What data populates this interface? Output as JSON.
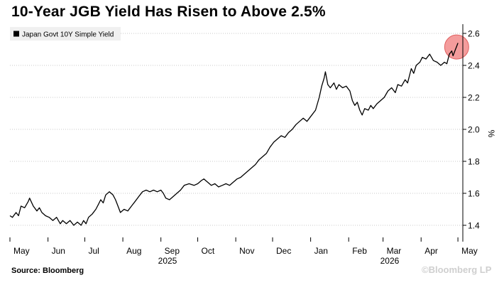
{
  "chart_data": {
    "type": "line",
    "title": "10-Year JGB Yield Has Risen to Above 2.5%",
    "xlabel": "",
    "ylabel": "%",
    "ylim": [
      1.3,
      2.65
    ],
    "yticks": [
      1.4,
      1.6,
      1.8,
      2.0,
      2.2,
      2.4,
      2.6
    ],
    "ytick_labels": [
      "1.4",
      "1.6",
      "1.8",
      "2.0",
      "2.2",
      "2.4",
      "2.6"
    ],
    "x_axis": {
      "start": "2025-05-01",
      "end": "2026-05-05",
      "months": [
        {
          "label": "May",
          "date": "2025-05-01"
        },
        {
          "label": "Jun",
          "date": "2025-06-01"
        },
        {
          "label": "Jul",
          "date": "2025-07-01"
        },
        {
          "label": "Aug",
          "date": "2025-08-01"
        },
        {
          "label": "Sep",
          "date": "2025-09-01"
        },
        {
          "label": "Oct",
          "date": "2025-10-01"
        },
        {
          "label": "Nov",
          "date": "2025-11-01"
        },
        {
          "label": "Dec",
          "date": "2025-12-01"
        },
        {
          "label": "Jan",
          "date": "2026-01-01"
        },
        {
          "label": "Feb",
          "date": "2026-02-01"
        },
        {
          "label": "Mar",
          "date": "2026-03-01"
        },
        {
          "label": "Apr",
          "date": "2026-04-01"
        },
        {
          "label": "May",
          "date": "2026-05-01"
        }
      ],
      "year_labels": [
        {
          "label": "2025",
          "date": "2025-09-01"
        },
        {
          "label": "2026",
          "date": "2026-03-01"
        }
      ]
    },
    "grid": true,
    "legend": {
      "position": "top-left"
    },
    "series": [
      {
        "name": "Japan Govt 10Y Simple Yield",
        "color": "#000000",
        "points": [
          [
            "2025-05-01",
            1.46
          ],
          [
            "2025-05-03",
            1.45
          ],
          [
            "2025-05-06",
            1.48
          ],
          [
            "2025-05-08",
            1.46
          ],
          [
            "2025-05-10",
            1.52
          ],
          [
            "2025-05-13",
            1.51
          ],
          [
            "2025-05-16",
            1.55
          ],
          [
            "2025-05-17",
            1.57
          ],
          [
            "2025-05-20",
            1.52
          ],
          [
            "2025-05-23",
            1.49
          ],
          [
            "2025-05-25",
            1.51
          ],
          [
            "2025-05-27",
            1.48
          ],
          [
            "2025-05-30",
            1.46
          ],
          [
            "2025-06-02",
            1.45
          ],
          [
            "2025-06-05",
            1.43
          ],
          [
            "2025-06-08",
            1.45
          ],
          [
            "2025-06-11",
            1.41
          ],
          [
            "2025-06-13",
            1.43
          ],
          [
            "2025-06-16",
            1.41
          ],
          [
            "2025-06-19",
            1.43
          ],
          [
            "2025-06-22",
            1.4
          ],
          [
            "2025-06-25",
            1.42
          ],
          [
            "2025-06-28",
            1.4
          ],
          [
            "2025-06-30",
            1.43
          ],
          [
            "2025-07-02",
            1.41
          ],
          [
            "2025-07-04",
            1.45
          ],
          [
            "2025-07-07",
            1.47
          ],
          [
            "2025-07-10",
            1.5
          ],
          [
            "2025-07-12",
            1.53
          ],
          [
            "2025-07-14",
            1.56
          ],
          [
            "2025-07-16",
            1.54
          ],
          [
            "2025-07-18",
            1.59
          ],
          [
            "2025-07-21",
            1.61
          ],
          [
            "2025-07-24",
            1.59
          ],
          [
            "2025-07-26",
            1.56
          ],
          [
            "2025-07-28",
            1.52
          ],
          [
            "2025-07-30",
            1.48
          ],
          [
            "2025-08-02",
            1.5
          ],
          [
            "2025-08-05",
            1.49
          ],
          [
            "2025-08-08",
            1.52
          ],
          [
            "2025-08-11",
            1.55
          ],
          [
            "2025-08-14",
            1.58
          ],
          [
            "2025-08-17",
            1.61
          ],
          [
            "2025-08-20",
            1.62
          ],
          [
            "2025-08-23",
            1.61
          ],
          [
            "2025-08-26",
            1.62
          ],
          [
            "2025-08-29",
            1.61
          ],
          [
            "2025-09-01",
            1.62
          ],
          [
            "2025-09-03",
            1.6
          ],
          [
            "2025-09-05",
            1.57
          ],
          [
            "2025-09-08",
            1.56
          ],
          [
            "2025-09-11",
            1.58
          ],
          [
            "2025-09-14",
            1.6
          ],
          [
            "2025-09-17",
            1.62
          ],
          [
            "2025-09-20",
            1.65
          ],
          [
            "2025-09-24",
            1.66
          ],
          [
            "2025-09-28",
            1.65
          ],
          [
            "2025-10-01",
            1.66
          ],
          [
            "2025-10-04",
            1.68
          ],
          [
            "2025-10-06",
            1.69
          ],
          [
            "2025-10-09",
            1.67
          ],
          [
            "2025-10-12",
            1.65
          ],
          [
            "2025-10-15",
            1.66
          ],
          [
            "2025-10-18",
            1.64
          ],
          [
            "2025-10-21",
            1.65
          ],
          [
            "2025-10-24",
            1.66
          ],
          [
            "2025-10-27",
            1.65
          ],
          [
            "2025-10-30",
            1.67
          ],
          [
            "2025-11-02",
            1.69
          ],
          [
            "2025-11-05",
            1.7
          ],
          [
            "2025-11-08",
            1.72
          ],
          [
            "2025-11-11",
            1.74
          ],
          [
            "2025-11-14",
            1.76
          ],
          [
            "2025-11-17",
            1.78
          ],
          [
            "2025-11-20",
            1.81
          ],
          [
            "2025-11-23",
            1.83
          ],
          [
            "2025-11-26",
            1.85
          ],
          [
            "2025-11-29",
            1.89
          ],
          [
            "2025-12-02",
            1.92
          ],
          [
            "2025-12-05",
            1.94
          ],
          [
            "2025-12-08",
            1.96
          ],
          [
            "2025-12-11",
            1.95
          ],
          [
            "2025-12-14",
            1.98
          ],
          [
            "2025-12-17",
            2.0
          ],
          [
            "2025-12-20",
            2.03
          ],
          [
            "2025-12-23",
            2.05
          ],
          [
            "2025-12-26",
            2.07
          ],
          [
            "2025-12-29",
            2.05
          ],
          [
            "2026-01-02",
            2.09
          ],
          [
            "2026-01-05",
            2.12
          ],
          [
            "2026-01-08",
            2.2
          ],
          [
            "2026-01-10",
            2.27
          ],
          [
            "2026-01-12",
            2.32
          ],
          [
            "2026-01-13",
            2.36
          ],
          [
            "2026-01-15",
            2.28
          ],
          [
            "2026-01-17",
            2.26
          ],
          [
            "2026-01-20",
            2.29
          ],
          [
            "2026-01-22",
            2.25
          ],
          [
            "2026-01-24",
            2.28
          ],
          [
            "2026-01-27",
            2.26
          ],
          [
            "2026-01-30",
            2.27
          ],
          [
            "2026-02-02",
            2.24
          ],
          [
            "2026-02-04",
            2.18
          ],
          [
            "2026-02-06",
            2.15
          ],
          [
            "2026-02-08",
            2.17
          ],
          [
            "2026-02-10",
            2.12
          ],
          [
            "2026-02-12",
            2.09
          ],
          [
            "2026-02-14",
            2.13
          ],
          [
            "2026-02-17",
            2.12
          ],
          [
            "2026-02-19",
            2.15
          ],
          [
            "2026-02-21",
            2.13
          ],
          [
            "2026-02-24",
            2.16
          ],
          [
            "2026-02-27",
            2.18
          ],
          [
            "2026-03-02",
            2.2
          ],
          [
            "2026-03-05",
            2.24
          ],
          [
            "2026-03-08",
            2.26
          ],
          [
            "2026-03-11",
            2.23
          ],
          [
            "2026-03-13",
            2.28
          ],
          [
            "2026-03-16",
            2.27
          ],
          [
            "2026-03-19",
            2.31
          ],
          [
            "2026-03-21",
            2.29
          ],
          [
            "2026-03-24",
            2.38
          ],
          [
            "2026-03-26",
            2.35
          ],
          [
            "2026-03-28",
            2.4
          ],
          [
            "2026-03-31",
            2.42
          ],
          [
            "2026-04-02",
            2.45
          ],
          [
            "2026-04-05",
            2.44
          ],
          [
            "2026-04-08",
            2.47
          ],
          [
            "2026-04-11",
            2.43
          ],
          [
            "2026-04-14",
            2.42
          ],
          [
            "2026-04-17",
            2.4
          ],
          [
            "2026-04-20",
            2.42
          ],
          [
            "2026-04-22",
            2.41
          ],
          [
            "2026-04-24",
            2.47
          ],
          [
            "2026-04-26",
            2.49
          ],
          [
            "2026-04-27",
            2.46
          ],
          [
            "2026-04-29",
            2.5
          ],
          [
            "2026-04-30",
            2.52
          ],
          [
            "2026-05-01",
            2.54
          ]
        ]
      }
    ],
    "highlight": {
      "date": "2026-04-30",
      "value": 2.515,
      "color": "#f28b8b"
    }
  },
  "source": "Source: Bloomberg",
  "watermark": "©Bloomberg LP"
}
